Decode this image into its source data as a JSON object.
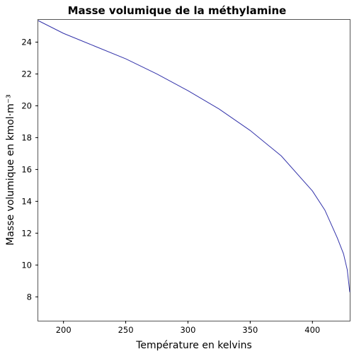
{
  "chart_data": {
    "type": "line",
    "title": "Masse volumique de la méthylamine",
    "xlabel": "Température en kelvins",
    "ylabel": "Masse volumique en kmol·m⁻³",
    "xlim": [
      179.7,
      430
    ],
    "ylim": [
      6.5,
      25.4
    ],
    "xticks": [
      200,
      250,
      300,
      350,
      400
    ],
    "yticks": [
      8,
      10,
      12,
      14,
      16,
      18,
      20,
      22,
      24
    ],
    "grid": false,
    "line_color": "#3333aa",
    "series": [
      {
        "x": [
          179.7,
          200,
          225,
          250,
          275,
          300,
          325,
          350,
          375,
          400,
          410,
          420,
          425,
          428,
          430
        ],
        "y": [
          25.35,
          24.55,
          23.75,
          22.95,
          22.0,
          20.95,
          19.8,
          18.45,
          16.85,
          14.65,
          13.45,
          11.7,
          10.7,
          9.7,
          8.3
        ]
      }
    ]
  }
}
